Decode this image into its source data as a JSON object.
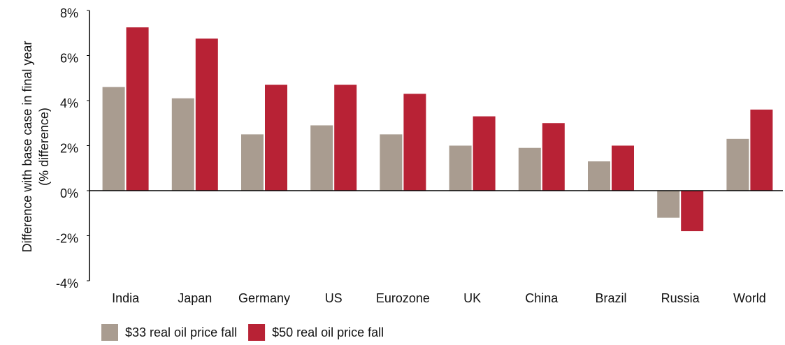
{
  "chart_data": {
    "type": "bar",
    "ylabel": [
      "Difference with base case in final year",
      "(% difference)"
    ],
    "categories": [
      "India",
      "Japan",
      "Germany",
      "US",
      "Eurozone",
      "UK",
      "China",
      "Brazil",
      "Russia",
      "World"
    ],
    "series": [
      {
        "name": "$33 real oil price fall",
        "color": "#a99c90",
        "values": [
          4.6,
          4.1,
          2.5,
          2.9,
          2.5,
          2.0,
          1.9,
          1.3,
          -1.2,
          2.3
        ]
      },
      {
        "name": "$50 real oil price fall",
        "color": "#b82235",
        "values": [
          7.25,
          6.75,
          4.7,
          4.7,
          4.3,
          3.3,
          3.0,
          2.0,
          -1.8,
          3.6
        ]
      }
    ],
    "ylim": [
      -4,
      8
    ],
    "yticks": [
      {
        "value": -4,
        "label": "-4%"
      },
      {
        "value": -2,
        "label": "-2%"
      },
      {
        "value": 0,
        "label": "0%"
      },
      {
        "value": 2,
        "label": "2%"
      },
      {
        "value": 4,
        "label": "4%"
      },
      {
        "value": 6,
        "label": "6%"
      },
      {
        "value": 8,
        "label": "8%"
      }
    ],
    "grid": false
  }
}
